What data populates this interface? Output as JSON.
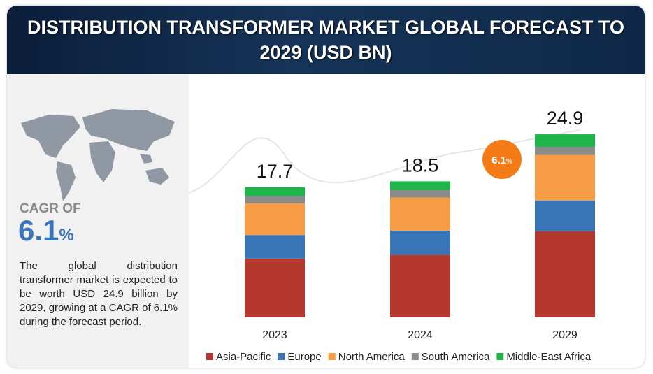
{
  "chart_data": {
    "type": "stacked-bar",
    "title": "DISTRIBUTION TRANSFORMER MARKET GLOBAL FORECAST TO 2029 (USD BN)",
    "categories": [
      "2023",
      "2024",
      "2029"
    ],
    "series": [
      {
        "name": "Asia-Pacific",
        "color": "#b5382e",
        "values": [
          8.0,
          8.5,
          11.7
        ]
      },
      {
        "name": "Europe",
        "color": "#3a75b8",
        "values": [
          3.2,
          3.3,
          4.2
        ]
      },
      {
        "name": "North America",
        "color": "#f59c45",
        "values": [
          4.3,
          4.5,
          6.2
        ]
      },
      {
        "name": "South America",
        "color": "#8a8a8a",
        "values": [
          1.0,
          1.0,
          1.1
        ]
      },
      {
        "name": "Middle-East Africa",
        "color": "#1fb54a",
        "values": [
          1.2,
          1.2,
          1.7
        ]
      }
    ],
    "totals": [
      17.7,
      18.5,
      24.9
    ],
    "badge": {
      "value": "6.1",
      "unit": "%",
      "color": "#f47b16"
    },
    "legend": "bottom"
  },
  "sidebar": {
    "cagr_label": "CAGR OF",
    "cagr_value": "6.1",
    "cagr_unit": "%",
    "description": "The global distribution transformer market is expected to be worth USD 24.9 billion by 2029, growing at a CAGR of 6.1% during the forecast period."
  }
}
